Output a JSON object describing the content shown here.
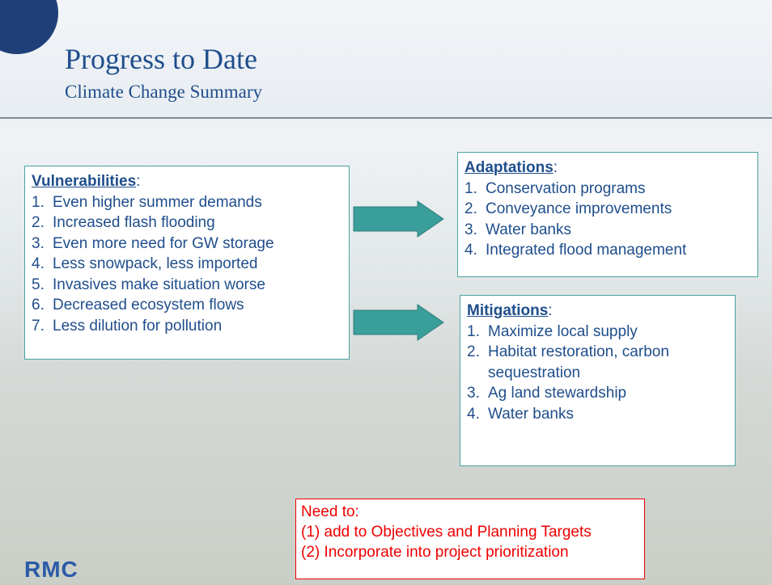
{
  "header": {
    "title": "Progress to Date",
    "subtitle": "Climate Change Summary"
  },
  "boxes": [
    {
      "heading": "Vulnerabilities",
      "colon": ":",
      "items": [
        {
          "num": "1.",
          "text": "Even higher summer demands"
        },
        {
          "num": "2.",
          "text": "Increased flash flooding"
        },
        {
          "num": "3.",
          "text": "Even more need for GW storage"
        },
        {
          "num": "4.",
          "text": "Less snowpack, less imported"
        },
        {
          "num": "5.",
          "text": "Invasives make situation worse"
        },
        {
          "num": "6.",
          "text": "Decreased ecosystem flows"
        },
        {
          "num": "7.",
          "text": "Less dilution for pollution"
        }
      ]
    },
    {
      "heading": "Adaptations",
      "colon": ":",
      "items": [
        {
          "num": "1.",
          "text": "Conservation programs"
        },
        {
          "num": "2.",
          "text": "Conveyance improvements"
        },
        {
          "num": "3.",
          "text": "Water banks"
        },
        {
          "num": "4.",
          "text": "Integrated flood management"
        }
      ]
    },
    {
      "heading": "Mitigations",
      "colon": ":",
      "items": [
        {
          "num": "1.",
          "text": "Maximize local supply"
        },
        {
          "num": "2.",
          "text": "Habitat restoration, carbon sequestration"
        },
        {
          "num": "3.",
          "text": "Ag land stewardship"
        },
        {
          "num": "4.",
          "text": "Water banks"
        }
      ]
    }
  ],
  "note": {
    "lines": [
      "Need to:",
      "(1) add to Objectives and Planning Targets",
      "(2) Incorporate into project prioritization"
    ]
  },
  "logo": "RMC"
}
